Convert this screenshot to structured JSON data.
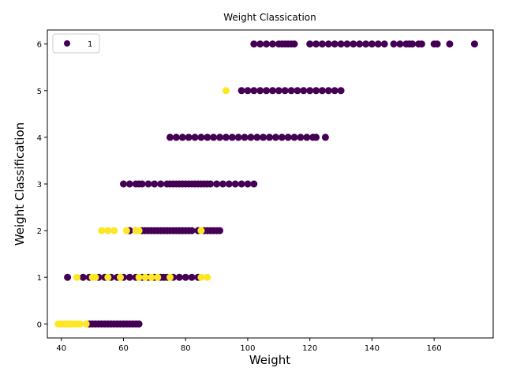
{
  "chart_data": {
    "type": "scatter",
    "title": "Weight Classication",
    "xlabel": "Weight",
    "ylabel": "Weight Classification",
    "xlim": [
      35.5,
      179
    ],
    "ylim": [
      -0.3,
      6.3
    ],
    "xticks": [
      40,
      60,
      80,
      100,
      120,
      140,
      160
    ],
    "yticks": [
      0,
      1,
      2,
      3,
      4,
      5,
      6
    ],
    "grid": false,
    "legend": {
      "placement": "top-left",
      "entries": [
        "1"
      ]
    },
    "colors": {
      "purple": "#440154",
      "yellow": "#fde725"
    },
    "series": [
      {
        "color_key": "purple",
        "points": [
          [
            49,
            0
          ],
          [
            50,
            0
          ],
          [
            51,
            0
          ],
          [
            52,
            0
          ],
          [
            53,
            0
          ],
          [
            54,
            0
          ],
          [
            55,
            0
          ],
          [
            56,
            0
          ],
          [
            57,
            0
          ],
          [
            58,
            0
          ],
          [
            59,
            0
          ],
          [
            60,
            0
          ],
          [
            61,
            0
          ],
          [
            62,
            0
          ],
          [
            63,
            0
          ],
          [
            64,
            0
          ],
          [
            65,
            0
          ],
          [
            42,
            1
          ],
          [
            47,
            1
          ],
          [
            49,
            1
          ],
          [
            52,
            1
          ],
          [
            54,
            1
          ],
          [
            56,
            1
          ],
          [
            58,
            1
          ],
          [
            60,
            1
          ],
          [
            62,
            1
          ],
          [
            64,
            1
          ],
          [
            66,
            1
          ],
          [
            68,
            1
          ],
          [
            70,
            1
          ],
          [
            72,
            1
          ],
          [
            73,
            1
          ],
          [
            74,
            1
          ],
          [
            76,
            1
          ],
          [
            78,
            1
          ],
          [
            80,
            1
          ],
          [
            82,
            1
          ],
          [
            84,
            1
          ],
          [
            62,
            2
          ],
          [
            64,
            2
          ],
          [
            66,
            2
          ],
          [
            67,
            2
          ],
          [
            68,
            2
          ],
          [
            69,
            2
          ],
          [
            70,
            2
          ],
          [
            71,
            2
          ],
          [
            72,
            2
          ],
          [
            73,
            2
          ],
          [
            74,
            2
          ],
          [
            75,
            2
          ],
          [
            76,
            2
          ],
          [
            77,
            2
          ],
          [
            78,
            2
          ],
          [
            79,
            2
          ],
          [
            80,
            2
          ],
          [
            81,
            2
          ],
          [
            82,
            2
          ],
          [
            84,
            2
          ],
          [
            86,
            2
          ],
          [
            87,
            2
          ],
          [
            88,
            2
          ],
          [
            89,
            2
          ],
          [
            90,
            2
          ],
          [
            91,
            2
          ],
          [
            60,
            3
          ],
          [
            62,
            3
          ],
          [
            64,
            3
          ],
          [
            65,
            3
          ],
          [
            66,
            3
          ],
          [
            68,
            3
          ],
          [
            70,
            3
          ],
          [
            72,
            3
          ],
          [
            74,
            3
          ],
          [
            75,
            3
          ],
          [
            76,
            3
          ],
          [
            77,
            3
          ],
          [
            78,
            3
          ],
          [
            79,
            3
          ],
          [
            80,
            3
          ],
          [
            81,
            3
          ],
          [
            82,
            3
          ],
          [
            83,
            3
          ],
          [
            84,
            3
          ],
          [
            85,
            3
          ],
          [
            86,
            3
          ],
          [
            87,
            3
          ],
          [
            88,
            3
          ],
          [
            90,
            3
          ],
          [
            92,
            3
          ],
          [
            94,
            3
          ],
          [
            96,
            3
          ],
          [
            98,
            3
          ],
          [
            100,
            3
          ],
          [
            102,
            3
          ],
          [
            75,
            4
          ],
          [
            77,
            4
          ],
          [
            79,
            4
          ],
          [
            81,
            4
          ],
          [
            83,
            4
          ],
          [
            85,
            4
          ],
          [
            87,
            4
          ],
          [
            89,
            4
          ],
          [
            91,
            4
          ],
          [
            93,
            4
          ],
          [
            95,
            4
          ],
          [
            97,
            4
          ],
          [
            99,
            4
          ],
          [
            101,
            4
          ],
          [
            103,
            4
          ],
          [
            105,
            4
          ],
          [
            107,
            4
          ],
          [
            109,
            4
          ],
          [
            111,
            4
          ],
          [
            113,
            4
          ],
          [
            115,
            4
          ],
          [
            117,
            4
          ],
          [
            119,
            4
          ],
          [
            121,
            4
          ],
          [
            122,
            4
          ],
          [
            125,
            4
          ],
          [
            98,
            5
          ],
          [
            100,
            5
          ],
          [
            102,
            5
          ],
          [
            104,
            5
          ],
          [
            106,
            5
          ],
          [
            108,
            5
          ],
          [
            110,
            5
          ],
          [
            112,
            5
          ],
          [
            114,
            5
          ],
          [
            116,
            5
          ],
          [
            118,
            5
          ],
          [
            120,
            5
          ],
          [
            122,
            5
          ],
          [
            124,
            5
          ],
          [
            126,
            5
          ],
          [
            128,
            5
          ],
          [
            130,
            5
          ],
          [
            102,
            6
          ],
          [
            104,
            6
          ],
          [
            106,
            6
          ],
          [
            108,
            6
          ],
          [
            110,
            6
          ],
          [
            111,
            6
          ],
          [
            112,
            6
          ],
          [
            113,
            6
          ],
          [
            114,
            6
          ],
          [
            115,
            6
          ],
          [
            120,
            6
          ],
          [
            122,
            6
          ],
          [
            124,
            6
          ],
          [
            126,
            6
          ],
          [
            128,
            6
          ],
          [
            130,
            6
          ],
          [
            132,
            6
          ],
          [
            134,
            6
          ],
          [
            136,
            6
          ],
          [
            138,
            6
          ],
          [
            140,
            6
          ],
          [
            142,
            6
          ],
          [
            144,
            6
          ],
          [
            147,
            6
          ],
          [
            149,
            6
          ],
          [
            151,
            6
          ],
          [
            152,
            6
          ],
          [
            153,
            6
          ],
          [
            155,
            6
          ],
          [
            156,
            6
          ],
          [
            160,
            6
          ],
          [
            161,
            6
          ],
          [
            165,
            6
          ],
          [
            173,
            6
          ]
        ]
      },
      {
        "color_key": "yellow",
        "points": [
          [
            39,
            0
          ],
          [
            40,
            0
          ],
          [
            41,
            0
          ],
          [
            42,
            0
          ],
          [
            43,
            0
          ],
          [
            44,
            0
          ],
          [
            45,
            0
          ],
          [
            46,
            0
          ],
          [
            48,
            0
          ],
          [
            45,
            1
          ],
          [
            50,
            1
          ],
          [
            51,
            1
          ],
          [
            55,
            1
          ],
          [
            59,
            1
          ],
          [
            65,
            1
          ],
          [
            67,
            1
          ],
          [
            69,
            1
          ],
          [
            71,
            1
          ],
          [
            75,
            1
          ],
          [
            85,
            1
          ],
          [
            87,
            1
          ],
          [
            53,
            2
          ],
          [
            55,
            2
          ],
          [
            57,
            2
          ],
          [
            61,
            2
          ],
          [
            64,
            2
          ],
          [
            65,
            2
          ],
          [
            85,
            2
          ],
          [
            93,
            5
          ]
        ]
      }
    ]
  }
}
